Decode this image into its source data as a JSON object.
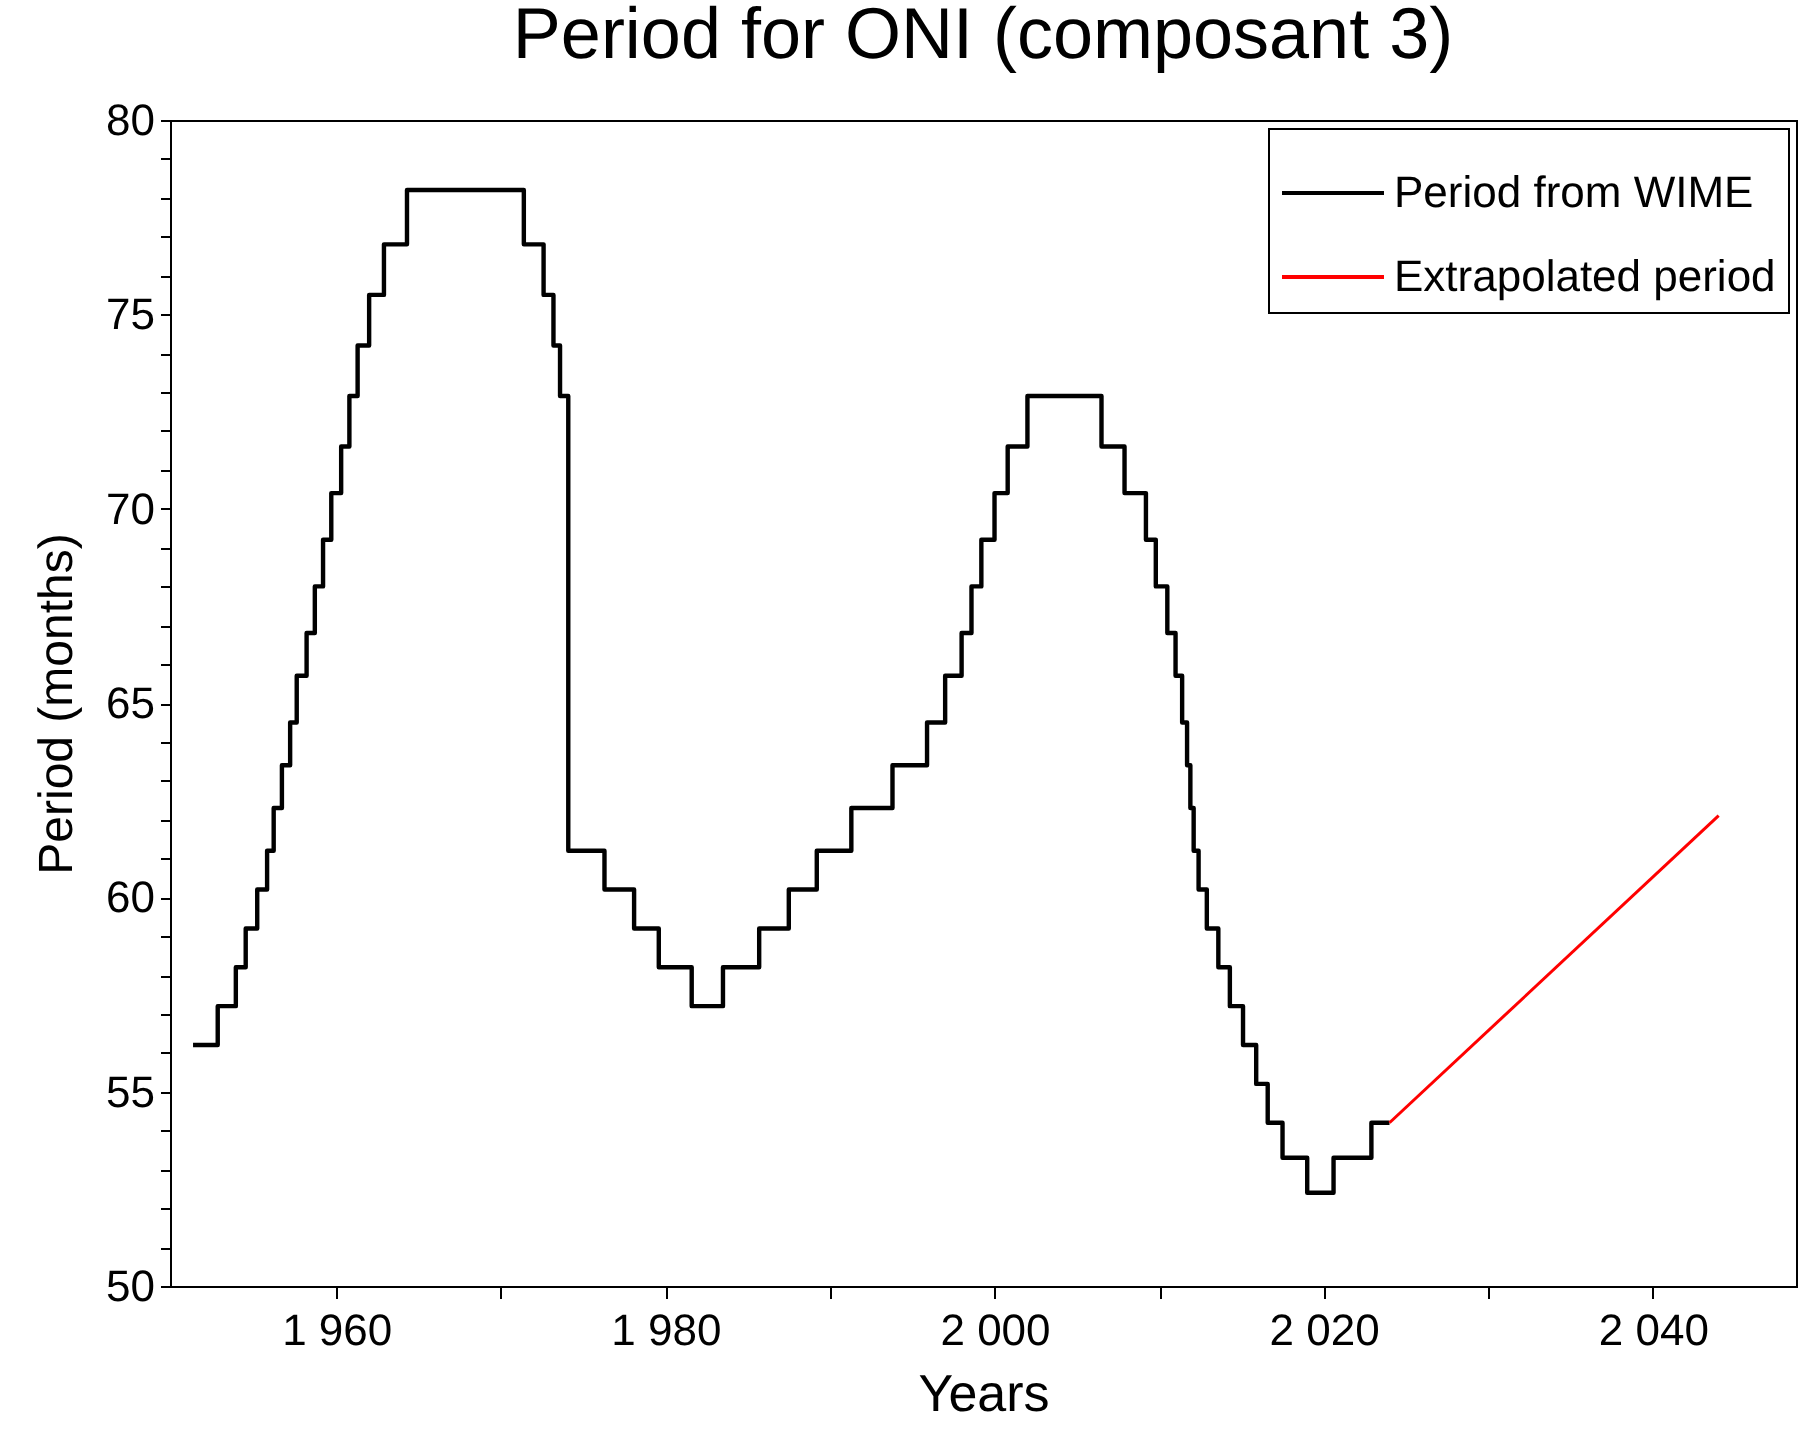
{
  "chart_data": {
    "type": "step",
    "title": "Period for ONI (composant 3)",
    "xlabel": "Years",
    "ylabel": "Period (months)",
    "xlim": [
      1949.9,
      2048.7
    ],
    "ylim": [
      50,
      80
    ],
    "xticks": [
      {
        "value": 1960,
        "label": "1 960"
      },
      {
        "value": 1970,
        "label": null
      },
      {
        "value": 1980,
        "label": "1 980"
      },
      {
        "value": 1990,
        "label": null
      },
      {
        "value": 2000,
        "label": "2 000"
      },
      {
        "value": 2010,
        "label": null
      },
      {
        "value": 2020,
        "label": "2 020"
      },
      {
        "value": 2030,
        "label": null
      },
      {
        "value": 2040,
        "label": "2 040"
      }
    ],
    "yticks": [
      50,
      {
        "value": 51,
        "label": null
      },
      {
        "value": 52,
        "label": null
      },
      {
        "value": 53,
        "label": null
      },
      {
        "value": 54,
        "label": null
      },
      55,
      {
        "value": 56,
        "label": null
      },
      {
        "value": 57,
        "label": null
      },
      {
        "value": 58,
        "label": null
      },
      {
        "value": 59,
        "label": null
      },
      60,
      {
        "value": 61,
        "label": null
      },
      {
        "value": 62,
        "label": null
      },
      {
        "value": 63,
        "label": null
      },
      {
        "value": 64,
        "label": null
      },
      65,
      {
        "value": 66,
        "label": null
      },
      {
        "value": 67,
        "label": null
      },
      {
        "value": 68,
        "label": null
      },
      {
        "value": 69,
        "label": null
      },
      70,
      {
        "value": 71,
        "label": null
      },
      {
        "value": 72,
        "label": null
      },
      {
        "value": 73,
        "label": null
      },
      {
        "value": 74,
        "label": null
      },
      75,
      {
        "value": 76,
        "label": null
      },
      {
        "value": 77,
        "label": null
      },
      {
        "value": 78,
        "label": null
      },
      {
        "value": 79,
        "label": null
      },
      80
    ],
    "legend": "top right",
    "grid": false,
    "marker": "none",
    "line_style": "solid",
    "series": [
      {
        "name": "Period from WIME",
        "type": "step",
        "color": "#000000",
        "x": [
          1951.3,
          1952.8,
          1953.9,
          1954.5,
          1955.2,
          1955.8,
          1956.2,
          1956.7,
          1957.2,
          1957.6,
          1958.2,
          1958.7,
          1959.2,
          1959.7,
          1960.3,
          1960.8,
          1961.3,
          1962.0,
          1962.9,
          1964.3,
          1971.4,
          1972.6,
          1973.2,
          1973.6,
          1974.1,
          1976.3,
          1978.1,
          1979.6,
          1981.6,
          1983.5,
          1985.7,
          1987.5,
          1989.2,
          1991.3,
          1993.8,
          1995.9,
          1997.0,
          1998.0,
          1998.6,
          1999.2,
          2000.0,
          2000.8,
          2002.0,
          2006.5,
          2007.9,
          2009.2,
          2009.8,
          2010.5,
          2011.0,
          2011.4,
          2011.7,
          2011.9,
          2012.1,
          2012.4,
          2012.9,
          2013.6,
          2014.3,
          2015.1,
          2015.9,
          2016.6,
          2017.5,
          2019.0,
          2020.6,
          2022.9,
          2024.0
        ],
        "values": [
          56.2,
          57.2,
          58.2,
          59.2,
          60.2,
          61.2,
          62.3,
          63.4,
          64.5,
          65.7,
          66.8,
          68.0,
          69.2,
          70.4,
          71.6,
          72.9,
          74.2,
          75.5,
          76.8,
          78.2,
          76.8,
          75.5,
          74.2,
          72.9,
          61.2,
          60.2,
          59.2,
          58.2,
          57.2,
          58.2,
          59.2,
          60.2,
          61.2,
          62.3,
          63.4,
          64.5,
          65.7,
          66.8,
          68.0,
          69.2,
          70.4,
          71.6,
          72.9,
          71.6,
          70.4,
          69.2,
          68.0,
          66.8,
          65.7,
          64.5,
          63.4,
          62.3,
          61.2,
          60.2,
          59.2,
          58.2,
          57.2,
          56.2,
          55.2,
          54.2,
          53.3,
          52.4,
          53.3,
          54.2,
          54.2
        ]
      },
      {
        "name": "Extrapolated period",
        "type": "line",
        "color": "#ff0000",
        "x": [
          2024.0,
          2044.0
        ],
        "values": [
          54.2,
          62.1
        ]
      }
    ]
  }
}
